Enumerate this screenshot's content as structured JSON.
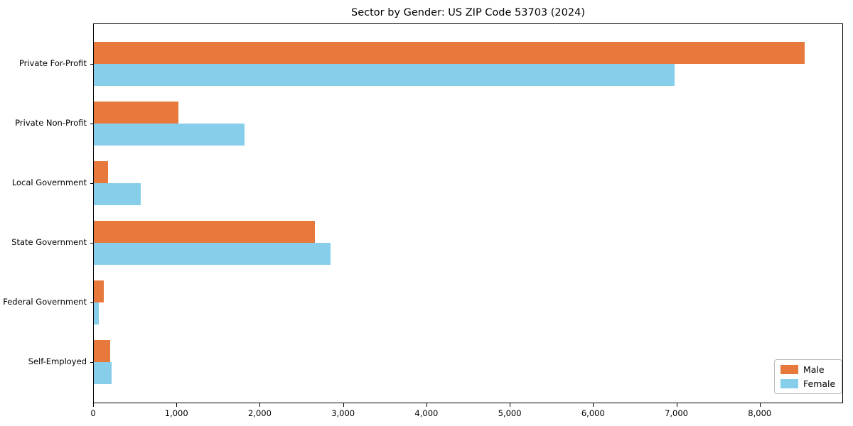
{
  "title": "Sector by Gender: US ZIP Code 53703 (2024)",
  "colors": {
    "male": "#E8793D",
    "female": "#87CEEB",
    "spine": "#000000",
    "legend_border": "#b8b8b8",
    "background": "#ffffff"
  },
  "legend": {
    "items": [
      {
        "label": "Male",
        "color": "#E8793D"
      },
      {
        "label": "Female",
        "color": "#87CEEB"
      }
    ],
    "position": "lower right"
  },
  "chart_data": {
    "type": "bar",
    "orientation": "horizontal",
    "title": "Sector by Gender: US ZIP Code 53703 (2024)",
    "categories": [
      "Private For-Profit",
      "Private Non-Profit",
      "Local Government",
      "State Government",
      "Federal Government",
      "Self-Employed"
    ],
    "series": [
      {
        "name": "Male",
        "color": "#E8793D",
        "values": [
          8550,
          1020,
          170,
          2660,
          120,
          195
        ]
      },
      {
        "name": "Female",
        "color": "#87CEEB",
        "values": [
          6980,
          1810,
          560,
          2850,
          60,
          210
        ]
      }
    ],
    "xlabel": "",
    "ylabel": "",
    "xlim": [
      0,
      9000
    ],
    "xticks": [
      0,
      1000,
      2000,
      3000,
      4000,
      5000,
      6000,
      7000,
      8000
    ],
    "xtick_labels": [
      "0",
      "1,000",
      "2,000",
      "3,000",
      "4,000",
      "5,000",
      "6,000",
      "7,000",
      "8,000"
    ],
    "grid": false,
    "legend_position": "lower right"
  }
}
